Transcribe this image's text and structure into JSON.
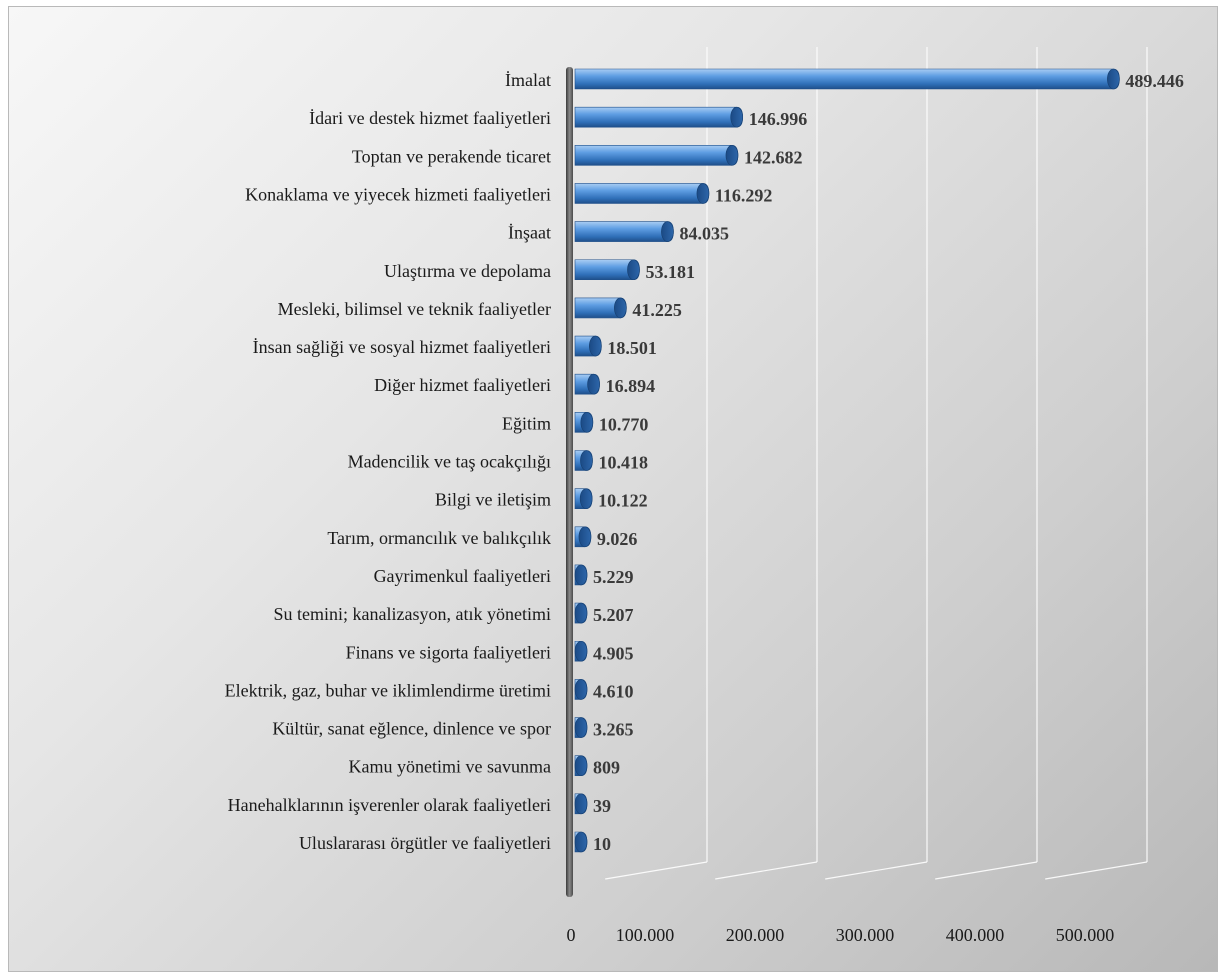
{
  "chart_data": {
    "type": "bar",
    "orientation": "horizontal",
    "title": "",
    "xlabel": "",
    "ylabel": "",
    "categories": [
      "İmalat",
      "İdari ve destek hizmet faaliyetleri",
      "Toptan ve perakende ticaret",
      "Konaklama ve yiyecek hizmeti faaliyetleri",
      "İnşaat",
      "Ulaştırma ve depolama",
      "Mesleki, bilimsel ve teknik faaliyetler",
      "İnsan sağliği ve sosyal hizmet faaliyetleri",
      "Diğer hizmet faaliyetleri",
      "Eğitim",
      "Madencilik ve taş ocakçılığı",
      "Bilgi ve iletişim",
      "Tarım, ormancılık ve balıkçılık",
      "Gayrimenkul faaliyetleri",
      "Su temini; kanalizasyon, atık yönetimi",
      "Finans ve sigorta faaliyetleri",
      "Elektrik, gaz, buhar ve iklimlendirme üretimi",
      "Kültür, sanat eğlence, dinlence ve spor",
      "Kamu yönetimi ve savunma",
      "Hanehalklarının işverenler olarak faaliyetleri",
      "Uluslararası örgütler ve  faaliyetleri"
    ],
    "values": [
      489446,
      146996,
      142682,
      116292,
      84035,
      53181,
      41225,
      18501,
      16894,
      10770,
      10418,
      10122,
      9026,
      5229,
      5207,
      4905,
      4610,
      3265,
      809,
      39,
      10
    ],
    "value_labels": [
      "489.446",
      "146.996",
      "142.682",
      "116.292",
      "84.035",
      "53.181",
      "41.225",
      "18.501",
      "16.894",
      "10.770",
      "10.418",
      "10.122",
      "9.026",
      "5.229",
      "5.207",
      "4.905",
      "4.610",
      "3.265",
      "809",
      "39",
      "10"
    ],
    "xlim": [
      0,
      500000
    ],
    "x_ticks": [
      0,
      100000,
      200000,
      300000,
      400000,
      500000
    ],
    "x_tick_labels": [
      "0",
      "100.000",
      "200.000",
      "300.000",
      "400.000",
      "500.000"
    ],
    "grid": true,
    "bar_color": "#4f8fd6",
    "style": "3d-cylinder"
  }
}
